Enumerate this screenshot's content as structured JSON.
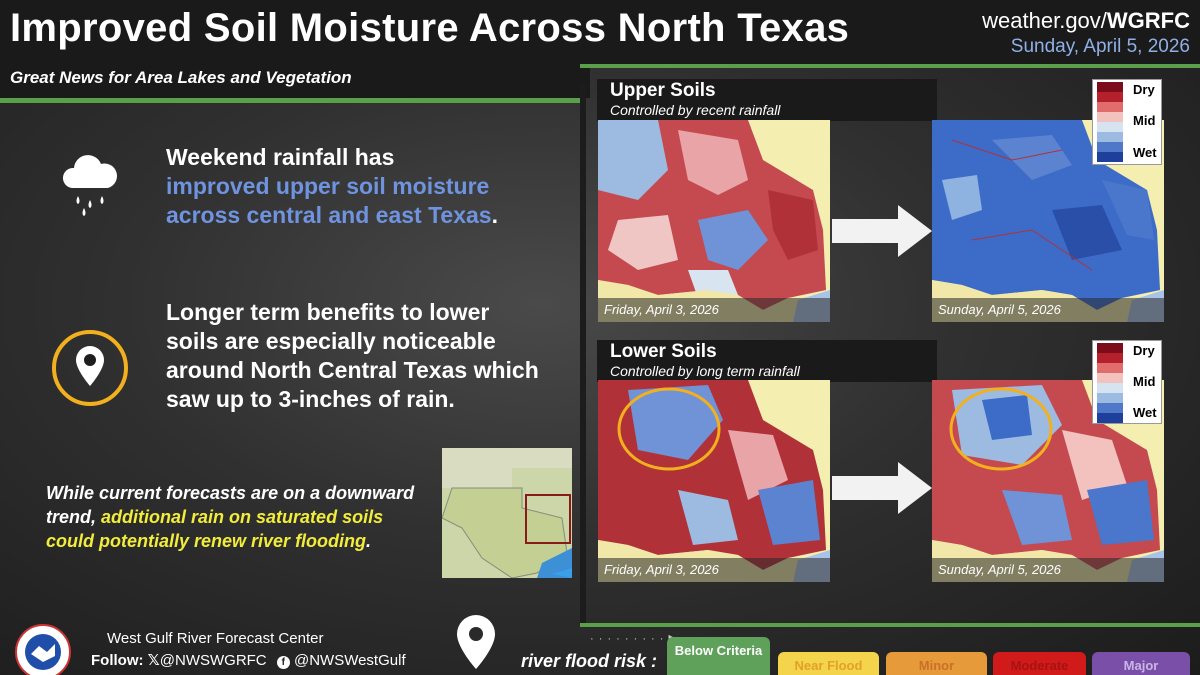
{
  "header": {
    "title": "Improved Soil Moisture Across North Texas",
    "site_prefix": "weather.gov/",
    "site_office": "WGRFC",
    "date": "Sunday, April 5, 2026",
    "subtitle": "Great News for Area Lakes and Vegetation"
  },
  "bullets": {
    "rain_line1": "Weekend rainfall has",
    "rain_highlight": "improved upper soil moisture across central and east Texas",
    "rain_end": ".",
    "lower_text": "Longer term benefits to lower soils are especially noticeable around North Central Texas which saw up to 3-inches of rain.",
    "note_prefix": "While current forecasts are on a downward trend,",
    "note_highlight": "additional rain on saturated soils could potentially renew river flooding",
    "note_end": "."
  },
  "panels": {
    "upper": {
      "title": "Upper Soils",
      "subtitle": "Controlled by recent rainfall",
      "before_label": "Friday, April 3, 2026",
      "after_label": "Sunday, April 5, 2026"
    },
    "lower": {
      "title": "Lower Soils",
      "subtitle": "Controlled by long term rainfall",
      "before_label": "Friday, April 3, 2026",
      "after_label": "Sunday, April 5, 2026"
    }
  },
  "legend": {
    "labels": [
      "Dry",
      "Mid",
      "Wet"
    ],
    "colors": [
      "#7d0c1a",
      "#b4202b",
      "#e06c6c",
      "#f3c2bf",
      "#d6e3f0",
      "#9dbbe0",
      "#4f78c9",
      "#1f3f9c"
    ]
  },
  "footer": {
    "center_name": "West Gulf River Forecast Center",
    "follow_label": "Follow:",
    "x_handle": "@NWSWGRFC",
    "fb_handle": "@NWSWestGulf",
    "risk_caption": "river flood risk :",
    "risk_levels": [
      {
        "label": "Below Criteria",
        "color": "#5fa05a"
      },
      {
        "label": "Near Flood",
        "color": "#f3d44a"
      },
      {
        "label": "Minor",
        "color": "#e79a3a"
      },
      {
        "label": "Moderate",
        "color": "#d11a1a"
      },
      {
        "label": "Major",
        "color": "#7a4fa8"
      }
    ]
  },
  "icons": {
    "rain": "rain-cloud-icon",
    "pin": "location-pin-icon",
    "x": "x-logo-icon",
    "facebook": "facebook-icon",
    "logo": "nws-logo"
  }
}
